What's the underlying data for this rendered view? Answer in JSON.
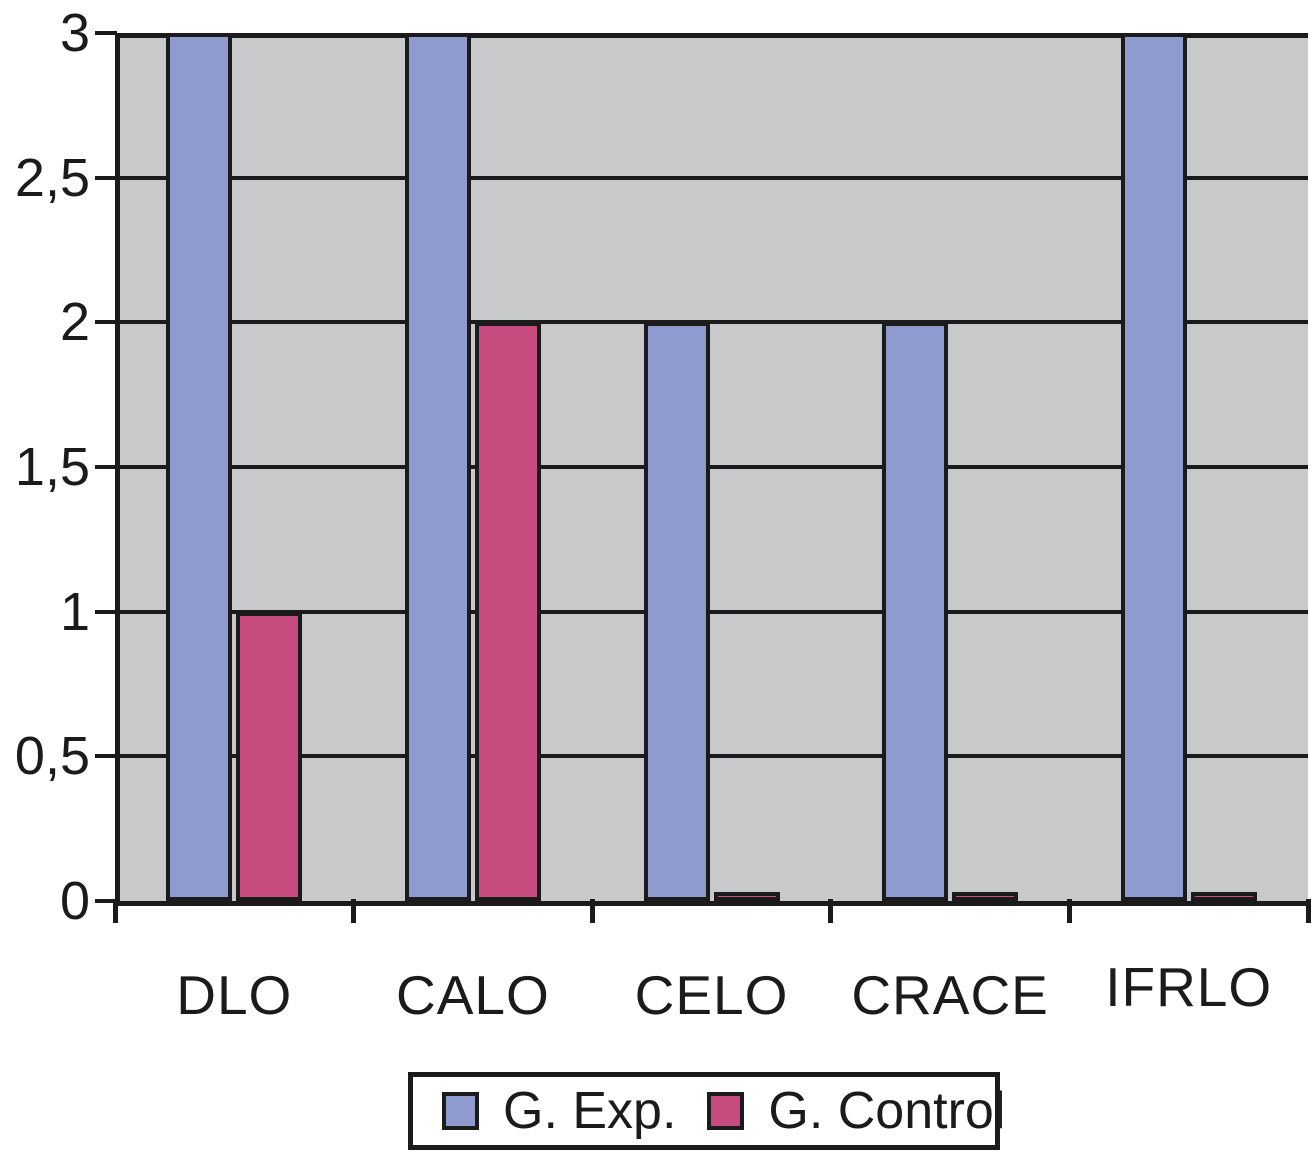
{
  "chart_data": {
    "type": "bar",
    "categories": [
      "DLO",
      "CALO",
      "CELO",
      "CRACE",
      "IFRLO"
    ],
    "series": [
      {
        "name": "G. Exp.",
        "color": "#8f9acf",
        "values": [
          3,
          3,
          2,
          2,
          3
        ]
      },
      {
        "name": "G. Control",
        "color": "#c74b7e",
        "values": [
          1,
          2,
          0.03,
          0.03,
          0.03
        ]
      }
    ],
    "title": "",
    "xlabel": "",
    "ylabel": "",
    "ylim": [
      0,
      3
    ],
    "ytick_step": 0.5,
    "ytick_labels": [
      "0",
      "0,5",
      "1",
      "1,5",
      "2",
      "2,5",
      "3"
    ],
    "grid": "horizontal",
    "legend_position": "bottom",
    "plot_background": "#c8c9cb",
    "line_color": "#1b1b1b",
    "outer_background": "#ffffff"
  }
}
